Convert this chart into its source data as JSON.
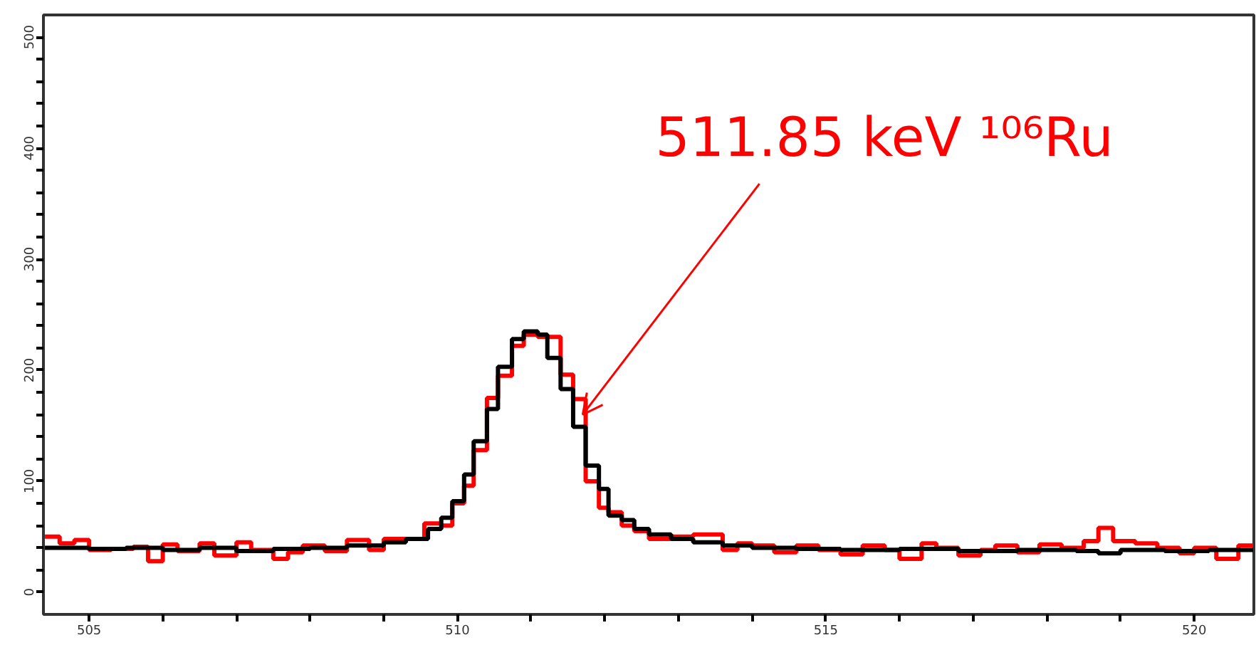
{
  "chart_data": {
    "type": "step",
    "xlim": [
      504.38,
      520.81
    ],
    "ylim": [
      -20,
      520
    ],
    "xticks": [
      505,
      {
        "value": 506,
        "label": null
      },
      {
        "value": 507,
        "label": null
      },
      {
        "value": 508,
        "label": null
      },
      {
        "value": 509,
        "label": null
      },
      510,
      {
        "value": 511,
        "label": null
      },
      {
        "value": 512,
        "label": null
      },
      {
        "value": 513,
        "label": null
      },
      {
        "value": 514,
        "label": null
      },
      515,
      {
        "value": 516,
        "label": null
      },
      {
        "value": 517,
        "label": null
      },
      {
        "value": 518,
        "label": null
      },
      {
        "value": 519,
        "label": null
      },
      520
    ],
    "yticks": [
      0,
      {
        "value": 20,
        "label": null
      },
      {
        "value": 40,
        "label": null
      },
      {
        "value": 60,
        "label": null
      },
      {
        "value": 80,
        "label": null
      },
      100,
      {
        "value": 120,
        "label": null
      },
      {
        "value": 140,
        "label": null
      },
      {
        "value": 160,
        "label": null
      },
      {
        "value": 180,
        "label": null
      },
      200,
      {
        "value": 220,
        "label": null
      },
      {
        "value": 240,
        "label": null
      },
      {
        "value": 260,
        "label": null
      },
      {
        "value": 280,
        "label": null
      },
      300,
      {
        "value": 320,
        "label": null
      },
      {
        "value": 340,
        "label": null
      },
      {
        "value": 360,
        "label": null
      },
      {
        "value": 380,
        "label": null
      },
      400,
      {
        "value": 420,
        "label": null
      },
      {
        "value": 440,
        "label": null
      },
      {
        "value": 460,
        "label": null
      },
      {
        "value": 480,
        "label": null
      },
      500
    ],
    "grid": false,
    "series": [
      {
        "color": "#ff0000",
        "x": [
          504.4,
          504.6,
          504.8,
          505.0,
          505.3,
          505.6,
          505.8,
          506.0,
          506.2,
          506.5,
          506.7,
          507.0,
          507.2,
          507.5,
          507.7,
          507.9,
          508.2,
          508.5,
          508.8,
          509.0,
          509.3,
          509.55,
          509.78,
          509.93,
          510.09,
          510.22,
          510.4,
          510.55,
          510.74,
          510.9,
          511.09,
          511.22,
          511.4,
          511.57,
          511.74,
          511.92,
          512.05,
          512.23,
          512.4,
          512.6,
          512.9,
          513.2,
          513.6,
          513.8,
          514.0,
          514.3,
          514.6,
          514.9,
          515.2,
          515.5,
          515.8,
          516.0,
          516.3,
          516.5,
          516.8,
          517.1,
          517.3,
          517.6,
          517.9,
          518.2,
          518.5,
          518.7,
          518.9,
          519.2,
          519.5,
          519.8,
          520.0,
          520.3,
          520.6,
          520.8
        ],
        "values": [
          50,
          44,
          47,
          38,
          39,
          41,
          28,
          43,
          37,
          44,
          33,
          45,
          38,
          30,
          36,
          42,
          37,
          47,
          38,
          48,
          48,
          62,
          60,
          80,
          96,
          128,
          175,
          195,
          222,
          232,
          230,
          230,
          196,
          174,
          100,
          76,
          72,
          60,
          55,
          48,
          50,
          52,
          38,
          44,
          42,
          36,
          42,
          38,
          34,
          42,
          38,
          30,
          44,
          40,
          33,
          38,
          42,
          36,
          43,
          40,
          46,
          58,
          46,
          44,
          40,
          35,
          40,
          30,
          42,
          42
        ]
      },
      {
        "color": "#000000",
        "x": [
          504.4,
          505.0,
          505.5,
          506.0,
          506.5,
          507.0,
          507.5,
          508.0,
          508.5,
          509.0,
          509.3,
          509.6,
          509.78,
          509.93,
          510.09,
          510.22,
          510.4,
          510.55,
          510.74,
          510.9,
          511.09,
          511.22,
          511.4,
          511.57,
          511.74,
          511.92,
          512.05,
          512.23,
          512.4,
          512.6,
          512.9,
          513.2,
          513.6,
          514.0,
          514.6,
          515.2,
          516.0,
          516.8,
          517.6,
          518.4,
          518.7,
          519.0,
          519.6,
          520.2,
          520.8
        ],
        "values": [
          40,
          39,
          40,
          38,
          40,
          37,
          39,
          40,
          42,
          45,
          48,
          57,
          67,
          82,
          106,
          136,
          165,
          203,
          228,
          235,
          232,
          211,
          183,
          149,
          114,
          93,
          69,
          65,
          57,
          52,
          48,
          45,
          42,
          40,
          39,
          38,
          39,
          37,
          38,
          37,
          35,
          38,
          37,
          38,
          38
        ]
      }
    ],
    "annotations": [
      {
        "text": "511.85 keV ¹⁰⁶Ru",
        "x": 511.7,
        "y": 160
      }
    ]
  }
}
